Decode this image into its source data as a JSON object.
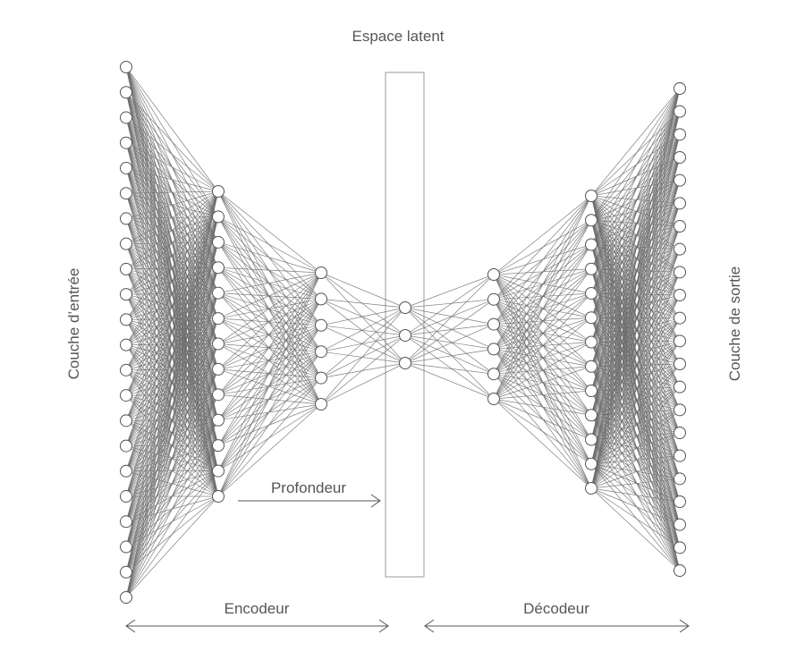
{
  "labels": {
    "latent_space": "Espace latent",
    "input_layer": "Couche d’entrée",
    "output_layer": "Couche de sortie",
    "depth": "Profondeur",
    "encoder": "Encodeur",
    "decoder": "Décodeur"
  },
  "network": {
    "layers": [
      {
        "name": "input-layer",
        "neurons": 22
      },
      {
        "name": "encoder-hidden-1",
        "neurons": 13
      },
      {
        "name": "encoder-hidden-2",
        "neurons": 6
      },
      {
        "name": "latent-layer",
        "neurons": 3
      },
      {
        "name": "decoder-hidden-1",
        "neurons": 6
      },
      {
        "name": "decoder-hidden-2",
        "neurons": 13
      },
      {
        "name": "output-layer",
        "neurons": 22
      }
    ]
  },
  "colors": {
    "connection": "#6a6a6a",
    "neuron_stroke": "#555555",
    "neuron_fill": "#ffffff",
    "text": "#555555",
    "latent_box": "#9a9a9a"
  }
}
